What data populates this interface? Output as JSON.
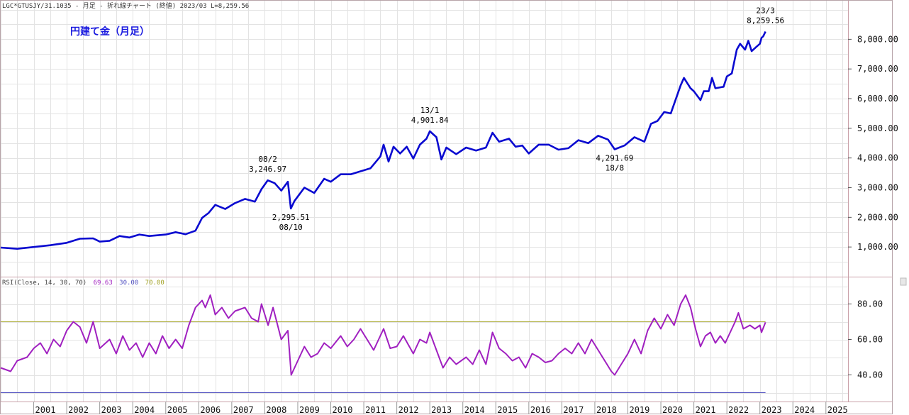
{
  "header": {
    "info": "LGC*GTUSJY/31.1035 - 月足 - 折れ線チャート (終値) 2023/03 L=8,259.56",
    "title": "円建て金（月足）"
  },
  "colors": {
    "price_line": "#0a0ad0",
    "rsi_line": "#a020c0",
    "overbought_line": "#b0b040",
    "oversold_line": "#5050c0",
    "title": "#1a1adf"
  },
  "rsi_panel": {
    "label": "RSI(Close, 14, 30, 70)",
    "value_rsi": "69.63",
    "value_lower": "30.00",
    "value_upper": "70.00"
  },
  "chart_data": [
    {
      "type": "line",
      "name": "price",
      "title": "円建て金（月足）",
      "x_start": 2000.0,
      "x_step_months": 1,
      "ylim": [
        0,
        9300
      ],
      "xlim": [
        2000.0,
        2025.67
      ],
      "yticks": [
        1000,
        2000,
        3000,
        4000,
        5000,
        6000,
        7000,
        8000
      ],
      "ytick_labels": [
        "1,000.00",
        "2,000.00",
        "3,000.00",
        "4,000.00",
        "5,000.00",
        "6,000.00",
        "7,000.00",
        "8,000.00"
      ],
      "xticks": [
        2001,
        2002,
        2003,
        2004,
        2005,
        2006,
        2007,
        2008,
        2009,
        2010,
        2011,
        2012,
        2013,
        2014,
        2015,
        2016,
        2017,
        2018,
        2019,
        2020,
        2021,
        2022,
        2023,
        2024,
        2025
      ],
      "keypoints": [
        [
          2000.0,
          980
        ],
        [
          2000.5,
          940
        ],
        [
          2001.0,
          1000
        ],
        [
          2001.5,
          1060
        ],
        [
          2002.0,
          1140
        ],
        [
          2002.4,
          1280
        ],
        [
          2002.8,
          1290
        ],
        [
          2003.0,
          1180
        ],
        [
          2003.3,
          1210
        ],
        [
          2003.6,
          1370
        ],
        [
          2003.9,
          1320
        ],
        [
          2004.2,
          1420
        ],
        [
          2004.5,
          1370
        ],
        [
          2004.8,
          1400
        ],
        [
          2005.0,
          1420
        ],
        [
          2005.3,
          1500
        ],
        [
          2005.6,
          1430
        ],
        [
          2005.9,
          1550
        ],
        [
          2006.1,
          1980
        ],
        [
          2006.3,
          2150
        ],
        [
          2006.5,
          2420
        ],
        [
          2006.8,
          2280
        ],
        [
          2007.1,
          2480
        ],
        [
          2007.4,
          2620
        ],
        [
          2007.7,
          2530
        ],
        [
          2007.9,
          2950
        ],
        [
          2008.09,
          3246.97
        ],
        [
          2008.3,
          3150
        ],
        [
          2008.5,
          2900
        ],
        [
          2008.7,
          3200
        ],
        [
          2008.79,
          2295.51
        ],
        [
          2008.9,
          2550
        ],
        [
          2009.2,
          3000
        ],
        [
          2009.5,
          2820
        ],
        [
          2009.8,
          3300
        ],
        [
          2010.0,
          3200
        ],
        [
          2010.3,
          3450
        ],
        [
          2010.6,
          3450
        ],
        [
          2010.9,
          3550
        ],
        [
          2011.2,
          3650
        ],
        [
          2011.5,
          4050
        ],
        [
          2011.6,
          4450
        ],
        [
          2011.75,
          3880
        ],
        [
          2011.9,
          4380
        ],
        [
          2012.1,
          4150
        ],
        [
          2012.3,
          4380
        ],
        [
          2012.5,
          3980
        ],
        [
          2012.7,
          4450
        ],
        [
          2012.9,
          4650
        ],
        [
          2013.0,
          4901.84
        ],
        [
          2013.2,
          4700
        ],
        [
          2013.35,
          3950
        ],
        [
          2013.5,
          4350
        ],
        [
          2013.8,
          4130
        ],
        [
          2014.1,
          4350
        ],
        [
          2014.4,
          4250
        ],
        [
          2014.7,
          4350
        ],
        [
          2014.9,
          4850
        ],
        [
          2015.1,
          4550
        ],
        [
          2015.4,
          4650
        ],
        [
          2015.6,
          4380
        ],
        [
          2015.8,
          4420
        ],
        [
          2016.0,
          4150
        ],
        [
          2016.3,
          4450
        ],
        [
          2016.6,
          4450
        ],
        [
          2016.9,
          4280
        ],
        [
          2017.2,
          4330
        ],
        [
          2017.5,
          4600
        ],
        [
          2017.8,
          4500
        ],
        [
          2018.1,
          4750
        ],
        [
          2018.4,
          4620
        ],
        [
          2018.6,
          4291.69
        ],
        [
          2018.9,
          4420
        ],
        [
          2019.2,
          4700
        ],
        [
          2019.5,
          4550
        ],
        [
          2019.7,
          5150
        ],
        [
          2019.9,
          5250
        ],
        [
          2020.1,
          5550
        ],
        [
          2020.3,
          5500
        ],
        [
          2020.6,
          6450
        ],
        [
          2020.7,
          6700
        ],
        [
          2020.9,
          6350
        ],
        [
          2021.0,
          6250
        ],
        [
          2021.2,
          5950
        ],
        [
          2021.3,
          6250
        ],
        [
          2021.45,
          6250
        ],
        [
          2021.55,
          6700
        ],
        [
          2021.65,
          6350
        ],
        [
          2021.9,
          6400
        ],
        [
          2022.0,
          6750
        ],
        [
          2022.15,
          6850
        ],
        [
          2022.3,
          7650
        ],
        [
          2022.4,
          7850
        ],
        [
          2022.55,
          7650
        ],
        [
          2022.65,
          7950
        ],
        [
          2022.75,
          7600
        ],
        [
          2022.9,
          7750
        ],
        [
          2023.0,
          7850
        ],
        [
          2023.05,
          8050
        ],
        [
          2023.1,
          8100
        ],
        [
          2023.17,
          8259.56
        ]
      ],
      "annotations": [
        {
          "date": "08/2",
          "value": "3,246.97",
          "x": 2008.09,
          "y": 3246.97,
          "pos": "above"
        },
        {
          "date": "08/10",
          "value": "2,295.51",
          "x": 2008.79,
          "y": 2295.51,
          "pos": "below"
        },
        {
          "date": "13/1",
          "value": "4,901.84",
          "x": 2013.0,
          "y": 4901.84,
          "pos": "above"
        },
        {
          "date": "18/8",
          "value": "4,291.69",
          "x": 2018.6,
          "y": 4291.69,
          "pos": "below"
        },
        {
          "date": "23/3",
          "value": "8,259.56",
          "x": 2023.17,
          "y": 8259.56,
          "pos": "above"
        }
      ]
    },
    {
      "type": "line",
      "name": "rsi",
      "title": "RSI(Close, 14, 30, 70)",
      "ylim": [
        25,
        95
      ],
      "yticks": [
        40,
        60,
        80
      ],
      "ytick_labels": [
        "40.00",
        "60.00",
        "80.00"
      ],
      "reference_lines": [
        70,
        30
      ],
      "keypoints": [
        [
          2000.0,
          44
        ],
        [
          2000.3,
          42
        ],
        [
          2000.5,
          48
        ],
        [
          2000.8,
          50
        ],
        [
          2001.0,
          55
        ],
        [
          2001.2,
          58
        ],
        [
          2001.4,
          52
        ],
        [
          2001.6,
          60
        ],
        [
          2001.8,
          56
        ],
        [
          2002.0,
          65
        ],
        [
          2002.2,
          70
        ],
        [
          2002.4,
          67
        ],
        [
          2002.6,
          58
        ],
        [
          2002.8,
          70
        ],
        [
          2003.0,
          55
        ],
        [
          2003.3,
          60
        ],
        [
          2003.5,
          52
        ],
        [
          2003.7,
          62
        ],
        [
          2003.9,
          54
        ],
        [
          2004.1,
          58
        ],
        [
          2004.3,
          50
        ],
        [
          2004.5,
          58
        ],
        [
          2004.7,
          52
        ],
        [
          2004.9,
          62
        ],
        [
          2005.1,
          55
        ],
        [
          2005.3,
          60
        ],
        [
          2005.5,
          55
        ],
        [
          2005.7,
          68
        ],
        [
          2005.9,
          78
        ],
        [
          2006.1,
          82
        ],
        [
          2006.2,
          78
        ],
        [
          2006.35,
          85
        ],
        [
          2006.5,
          74
        ],
        [
          2006.7,
          78
        ],
        [
          2006.9,
          72
        ],
        [
          2007.1,
          76
        ],
        [
          2007.4,
          78
        ],
        [
          2007.6,
          72
        ],
        [
          2007.8,
          70
        ],
        [
          2007.9,
          80
        ],
        [
          2008.1,
          68
        ],
        [
          2008.25,
          78
        ],
        [
          2008.5,
          60
        ],
        [
          2008.7,
          65
        ],
        [
          2008.8,
          40
        ],
        [
          2009.0,
          48
        ],
        [
          2009.2,
          56
        ],
        [
          2009.4,
          50
        ],
        [
          2009.6,
          52
        ],
        [
          2009.8,
          58
        ],
        [
          2010.0,
          55
        ],
        [
          2010.3,
          62
        ],
        [
          2010.5,
          56
        ],
        [
          2010.7,
          60
        ],
        [
          2010.9,
          66
        ],
        [
          2011.1,
          60
        ],
        [
          2011.3,
          54
        ],
        [
          2011.6,
          66
        ],
        [
          2011.8,
          55
        ],
        [
          2012.0,
          56
        ],
        [
          2012.2,
          62
        ],
        [
          2012.5,
          52
        ],
        [
          2012.7,
          60
        ],
        [
          2012.9,
          58
        ],
        [
          2013.0,
          64
        ],
        [
          2013.2,
          54
        ],
        [
          2013.4,
          44
        ],
        [
          2013.6,
          50
        ],
        [
          2013.8,
          46
        ],
        [
          2014.1,
          50
        ],
        [
          2014.3,
          46
        ],
        [
          2014.5,
          54
        ],
        [
          2014.7,
          46
        ],
        [
          2014.9,
          64
        ],
        [
          2015.1,
          55
        ],
        [
          2015.3,
          52
        ],
        [
          2015.5,
          48
        ],
        [
          2015.7,
          50
        ],
        [
          2015.9,
          44
        ],
        [
          2016.1,
          52
        ],
        [
          2016.3,
          50
        ],
        [
          2016.5,
          47
        ],
        [
          2016.7,
          48
        ],
        [
          2016.9,
          52
        ],
        [
          2017.1,
          55
        ],
        [
          2017.3,
          52
        ],
        [
          2017.5,
          58
        ],
        [
          2017.7,
          52
        ],
        [
          2017.9,
          60
        ],
        [
          2018.1,
          54
        ],
        [
          2018.3,
          48
        ],
        [
          2018.5,
          42
        ],
        [
          2018.6,
          40
        ],
        [
          2018.8,
          46
        ],
        [
          2019.0,
          52
        ],
        [
          2019.2,
          60
        ],
        [
          2019.4,
          52
        ],
        [
          2019.6,
          65
        ],
        [
          2019.8,
          72
        ],
        [
          2020.0,
          66
        ],
        [
          2020.2,
          74
        ],
        [
          2020.4,
          68
        ],
        [
          2020.6,
          80
        ],
        [
          2020.75,
          85
        ],
        [
          2020.9,
          78
        ],
        [
          2021.05,
          66
        ],
        [
          2021.2,
          56
        ],
        [
          2021.35,
          62
        ],
        [
          2021.5,
          64
        ],
        [
          2021.65,
          58
        ],
        [
          2021.8,
          62
        ],
        [
          2021.95,
          58
        ],
        [
          2022.1,
          64
        ],
        [
          2022.25,
          70
        ],
        [
          2022.35,
          75
        ],
        [
          2022.5,
          66
        ],
        [
          2022.7,
          68
        ],
        [
          2022.85,
          66
        ],
        [
          2023.0,
          68
        ],
        [
          2023.05,
          64
        ],
        [
          2023.17,
          69.63
        ]
      ]
    }
  ]
}
